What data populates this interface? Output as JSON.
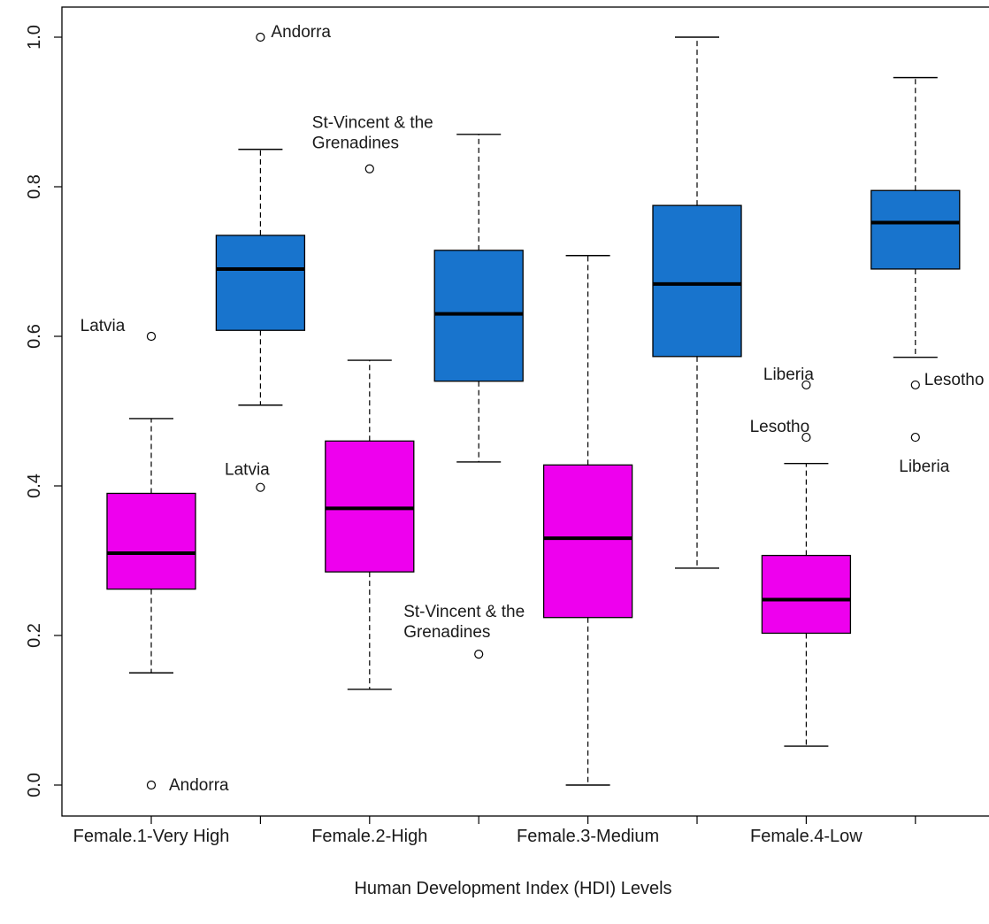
{
  "chart_data": {
    "type": "box",
    "title": "",
    "xlabel": "Human Development Index (HDI) Levels",
    "ylabel": "",
    "ylim": [
      -0.04,
      1.04
    ],
    "yticks": [
      "0.0",
      "0.2",
      "0.4",
      "0.6",
      "0.8",
      "1.0"
    ],
    "ytick_values": [
      0.0,
      0.2,
      0.4,
      0.6,
      0.8,
      1.0
    ],
    "categories": [
      "Female.1-Very High",
      "Female.2-High",
      "Female.3-Medium",
      "Female.4-Low"
    ],
    "colors": {
      "female": "#ee00ee",
      "male": "#1874cd"
    },
    "boxes": [
      {
        "position": 1,
        "group": "female",
        "whisker_low": 0.15,
        "q1": 0.262,
        "median": 0.31,
        "q3": 0.39,
        "whisker_high": 0.49,
        "outliers": [
          {
            "value": 0.6,
            "label": "Latvia"
          },
          {
            "value": 0.0,
            "label": "Andorra"
          }
        ]
      },
      {
        "position": 2,
        "group": "male",
        "whisker_low": 0.508,
        "q1": 0.608,
        "median": 0.69,
        "q3": 0.735,
        "whisker_high": 0.85,
        "outliers": [
          {
            "value": 1.0,
            "label": "Andorra"
          },
          {
            "value": 0.398,
            "label": "Latvia"
          }
        ]
      },
      {
        "position": 3,
        "group": "female",
        "whisker_low": 0.128,
        "q1": 0.285,
        "median": 0.37,
        "q3": 0.46,
        "whisker_high": 0.568,
        "outliers": [
          {
            "value": 0.824,
            "label": "St-Vincent & the\nGrenadines"
          }
        ]
      },
      {
        "position": 4,
        "group": "male",
        "whisker_low": 0.432,
        "q1": 0.54,
        "median": 0.63,
        "q3": 0.715,
        "whisker_high": 0.87,
        "outliers": [
          {
            "value": 0.175,
            "label": "St-Vincent & the\nGrenadines"
          }
        ]
      },
      {
        "position": 5,
        "group": "female",
        "whisker_low": 0.0,
        "q1": 0.224,
        "median": 0.33,
        "q3": 0.428,
        "whisker_high": 0.708,
        "outliers": []
      },
      {
        "position": 6,
        "group": "male",
        "whisker_low": 0.29,
        "q1": 0.573,
        "median": 0.67,
        "q3": 0.775,
        "whisker_high": 1.0,
        "outliers": []
      },
      {
        "position": 7,
        "group": "female",
        "whisker_low": 0.052,
        "q1": 0.203,
        "median": 0.248,
        "q3": 0.307,
        "whisker_high": 0.43,
        "outliers": [
          {
            "value": 0.535,
            "label": "Liberia"
          },
          {
            "value": 0.465,
            "label": "Lesotho"
          }
        ]
      },
      {
        "position": 8,
        "group": "male",
        "whisker_low": 0.572,
        "q1": 0.69,
        "median": 0.752,
        "q3": 0.795,
        "whisker_high": 0.946,
        "outliers": [
          {
            "value": 0.535,
            "label": "Lesotho"
          },
          {
            "value": 0.465,
            "label": "Liberia"
          }
        ]
      }
    ]
  }
}
